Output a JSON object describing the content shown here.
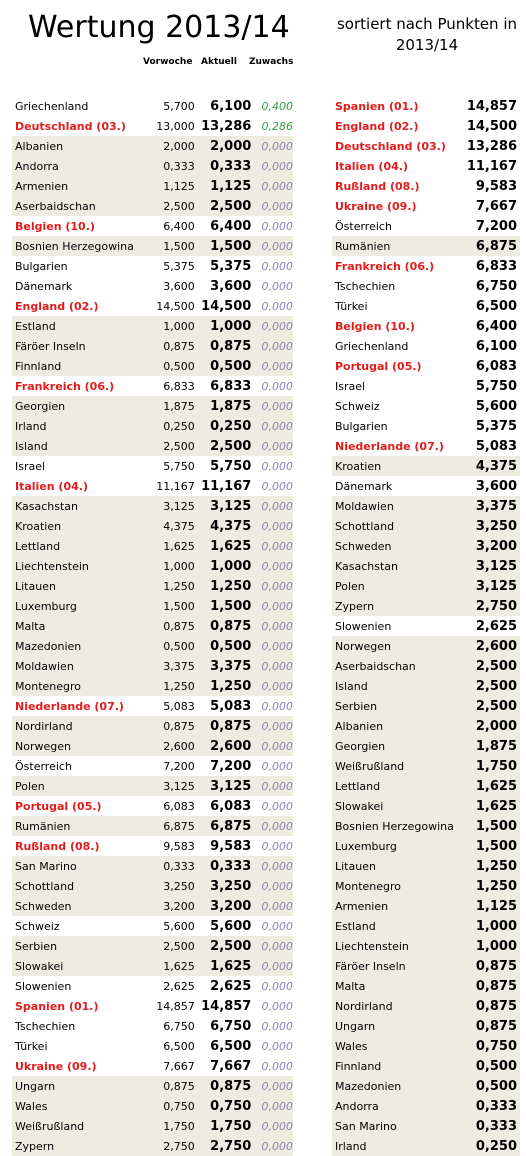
{
  "title": "Wertung 2013/14",
  "subtitle_line1": "sortiert nach Punkten in",
  "subtitle_line2": "2013/14",
  "headers": {
    "vorwoche": "Vorwoche",
    "aktuell": "Aktuell",
    "zuwachs": "Zuwachs"
  },
  "left_rows": [
    {
      "name": "Griechenland",
      "vor": "5,700",
      "akt": "6,100",
      "zuw": "0,400",
      "hl": false,
      "bg": false,
      "pos": true
    },
    {
      "name": "Deutschland (03.)",
      "vor": "13,000",
      "akt": "13,286",
      "zuw": "0,286",
      "hl": true,
      "bg": false,
      "pos": true
    },
    {
      "name": "Albanien",
      "vor": "2,000",
      "akt": "2,000",
      "zuw": "0,000",
      "hl": false,
      "bg": true,
      "pos": false
    },
    {
      "name": "Andorra",
      "vor": "0,333",
      "akt": "0,333",
      "zuw": "0,000",
      "hl": false,
      "bg": true,
      "pos": false
    },
    {
      "name": "Armenien",
      "vor": "1,125",
      "akt": "1,125",
      "zuw": "0,000",
      "hl": false,
      "bg": true,
      "pos": false
    },
    {
      "name": "Aserbaidschan",
      "vor": "2,500",
      "akt": "2,500",
      "zuw": "0,000",
      "hl": false,
      "bg": true,
      "pos": false
    },
    {
      "name": "Belgien (10.)",
      "vor": "6,400",
      "akt": "6,400",
      "zuw": "0,000",
      "hl": true,
      "bg": false,
      "pos": false
    },
    {
      "name": "Bosnien Herzegowina",
      "vor": "1,500",
      "akt": "1,500",
      "zuw": "0,000",
      "hl": false,
      "bg": true,
      "pos": false
    },
    {
      "name": "Bulgarien",
      "vor": "5,375",
      "akt": "5,375",
      "zuw": "0,000",
      "hl": false,
      "bg": false,
      "pos": false
    },
    {
      "name": "Dänemark",
      "vor": "3,600",
      "akt": "3,600",
      "zuw": "0,000",
      "hl": false,
      "bg": false,
      "pos": false
    },
    {
      "name": "England (02.)",
      "vor": "14,500",
      "akt": "14,500",
      "zuw": "0,000",
      "hl": true,
      "bg": false,
      "pos": false
    },
    {
      "name": "Estland",
      "vor": "1,000",
      "akt": "1,000",
      "zuw": "0,000",
      "hl": false,
      "bg": true,
      "pos": false
    },
    {
      "name": "Färöer Inseln",
      "vor": "0,875",
      "akt": "0,875",
      "zuw": "0,000",
      "hl": false,
      "bg": true,
      "pos": false
    },
    {
      "name": "Finnland",
      "vor": "0,500",
      "akt": "0,500",
      "zuw": "0,000",
      "hl": false,
      "bg": true,
      "pos": false
    },
    {
      "name": "Frankreich (06.)",
      "vor": "6,833",
      "akt": "6,833",
      "zuw": "0,000",
      "hl": true,
      "bg": false,
      "pos": false
    },
    {
      "name": "Georgien",
      "vor": "1,875",
      "akt": "1,875",
      "zuw": "0,000",
      "hl": false,
      "bg": true,
      "pos": false
    },
    {
      "name": "Irland",
      "vor": "0,250",
      "akt": "0,250",
      "zuw": "0,000",
      "hl": false,
      "bg": true,
      "pos": false
    },
    {
      "name": "Island",
      "vor": "2,500",
      "akt": "2,500",
      "zuw": "0,000",
      "hl": false,
      "bg": true,
      "pos": false
    },
    {
      "name": "Israel",
      "vor": "5,750",
      "akt": "5,750",
      "zuw": "0,000",
      "hl": false,
      "bg": false,
      "pos": false
    },
    {
      "name": "Italien (04.)",
      "vor": "11,167",
      "akt": "11,167",
      "zuw": "0,000",
      "hl": true,
      "bg": false,
      "pos": false
    },
    {
      "name": "Kasachstan",
      "vor": "3,125",
      "akt": "3,125",
      "zuw": "0,000",
      "hl": false,
      "bg": true,
      "pos": false
    },
    {
      "name": "Kroatien",
      "vor": "4,375",
      "akt": "4,375",
      "zuw": "0,000",
      "hl": false,
      "bg": true,
      "pos": false
    },
    {
      "name": "Lettland",
      "vor": "1,625",
      "akt": "1,625",
      "zuw": "0,000",
      "hl": false,
      "bg": true,
      "pos": false
    },
    {
      "name": "Liechtenstein",
      "vor": "1,000",
      "akt": "1,000",
      "zuw": "0,000",
      "hl": false,
      "bg": true,
      "pos": false
    },
    {
      "name": "Litauen",
      "vor": "1,250",
      "akt": "1,250",
      "zuw": "0,000",
      "hl": false,
      "bg": true,
      "pos": false
    },
    {
      "name": "Luxemburg",
      "vor": "1,500",
      "akt": "1,500",
      "zuw": "0,000",
      "hl": false,
      "bg": true,
      "pos": false
    },
    {
      "name": "Malta",
      "vor": "0,875",
      "akt": "0,875",
      "zuw": "0,000",
      "hl": false,
      "bg": true,
      "pos": false
    },
    {
      "name": "Mazedonien",
      "vor": "0,500",
      "akt": "0,500",
      "zuw": "0,000",
      "hl": false,
      "bg": true,
      "pos": false
    },
    {
      "name": "Moldawien",
      "vor": "3,375",
      "akt": "3,375",
      "zuw": "0,000",
      "hl": false,
      "bg": true,
      "pos": false
    },
    {
      "name": "Montenegro",
      "vor": "1,250",
      "akt": "1,250",
      "zuw": "0,000",
      "hl": false,
      "bg": true,
      "pos": false
    },
    {
      "name": "Niederlande (07.)",
      "vor": "5,083",
      "akt": "5,083",
      "zuw": "0,000",
      "hl": true,
      "bg": false,
      "pos": false
    },
    {
      "name": "Nordirland",
      "vor": "0,875",
      "akt": "0,875",
      "zuw": "0,000",
      "hl": false,
      "bg": true,
      "pos": false
    },
    {
      "name": "Norwegen",
      "vor": "2,600",
      "akt": "2,600",
      "zuw": "0,000",
      "hl": false,
      "bg": true,
      "pos": false
    },
    {
      "name": "Österreich",
      "vor": "7,200",
      "akt": "7,200",
      "zuw": "0,000",
      "hl": false,
      "bg": false,
      "pos": false
    },
    {
      "name": "Polen",
      "vor": "3,125",
      "akt": "3,125",
      "zuw": "0,000",
      "hl": false,
      "bg": true,
      "pos": false
    },
    {
      "name": "Portugal (05.)",
      "vor": "6,083",
      "akt": "6,083",
      "zuw": "0,000",
      "hl": true,
      "bg": false,
      "pos": false
    },
    {
      "name": "Rumänien",
      "vor": "6,875",
      "akt": "6,875",
      "zuw": "0,000",
      "hl": false,
      "bg": true,
      "pos": false
    },
    {
      "name": "Rußland (08.)",
      "vor": "9,583",
      "akt": "9,583",
      "zuw": "0,000",
      "hl": true,
      "bg": false,
      "pos": false
    },
    {
      "name": "San Marino",
      "vor": "0,333",
      "akt": "0,333",
      "zuw": "0,000",
      "hl": false,
      "bg": true,
      "pos": false
    },
    {
      "name": "Schottland",
      "vor": "3,250",
      "akt": "3,250",
      "zuw": "0,000",
      "hl": false,
      "bg": true,
      "pos": false
    },
    {
      "name": "Schweden",
      "vor": "3,200",
      "akt": "3,200",
      "zuw": "0,000",
      "hl": false,
      "bg": true,
      "pos": false
    },
    {
      "name": "Schweiz",
      "vor": "5,600",
      "akt": "5,600",
      "zuw": "0,000",
      "hl": false,
      "bg": false,
      "pos": false
    },
    {
      "name": "Serbien",
      "vor": "2,500",
      "akt": "2,500",
      "zuw": "0,000",
      "hl": false,
      "bg": true,
      "pos": false
    },
    {
      "name": "Slowakei",
      "vor": "1,625",
      "akt": "1,625",
      "zuw": "0,000",
      "hl": false,
      "bg": true,
      "pos": false
    },
    {
      "name": "Slowenien",
      "vor": "2,625",
      "akt": "2,625",
      "zuw": "0,000",
      "hl": false,
      "bg": false,
      "pos": false
    },
    {
      "name": "Spanien (01.)",
      "vor": "14,857",
      "akt": "14,857",
      "zuw": "0,000",
      "hl": true,
      "bg": false,
      "pos": false
    },
    {
      "name": "Tschechien",
      "vor": "6,750",
      "akt": "6,750",
      "zuw": "0,000",
      "hl": false,
      "bg": false,
      "pos": false
    },
    {
      "name": "Türkei",
      "vor": "6,500",
      "akt": "6,500",
      "zuw": "0,000",
      "hl": false,
      "bg": false,
      "pos": false
    },
    {
      "name": "Ukraine (09.)",
      "vor": "7,667",
      "akt": "7,667",
      "zuw": "0,000",
      "hl": true,
      "bg": false,
      "pos": false
    },
    {
      "name": "Ungarn",
      "vor": "0,875",
      "akt": "0,875",
      "zuw": "0,000",
      "hl": false,
      "bg": true,
      "pos": false
    },
    {
      "name": "Wales",
      "vor": "0,750",
      "akt": "0,750",
      "zuw": "0,000",
      "hl": false,
      "bg": true,
      "pos": false
    },
    {
      "name": "Weißrußland",
      "vor": "1,750",
      "akt": "1,750",
      "zuw": "0,000",
      "hl": false,
      "bg": true,
      "pos": false
    },
    {
      "name": "Zypern",
      "vor": "2,750",
      "akt": "2,750",
      "zuw": "0,000",
      "hl": false,
      "bg": true,
      "pos": false
    }
  ],
  "right_rows": [
    {
      "name": "Spanien (01.)",
      "akt": "14,857",
      "hl": true,
      "bg": false
    },
    {
      "name": "England (02.)",
      "akt": "14,500",
      "hl": true,
      "bg": false
    },
    {
      "name": "Deutschland (03.)",
      "akt": "13,286",
      "hl": true,
      "bg": false
    },
    {
      "name": "Italien (04.)",
      "akt": "11,167",
      "hl": true,
      "bg": false
    },
    {
      "name": "Rußland (08.)",
      "akt": "9,583",
      "hl": true,
      "bg": false
    },
    {
      "name": "Ukraine (09.)",
      "akt": "7,667",
      "hl": true,
      "bg": false
    },
    {
      "name": "Österreich",
      "akt": "7,200",
      "hl": false,
      "bg": false
    },
    {
      "name": "Rumänien",
      "akt": "6,875",
      "hl": false,
      "bg": true
    },
    {
      "name": "Frankreich (06.)",
      "akt": "6,833",
      "hl": true,
      "bg": false
    },
    {
      "name": "Tschechien",
      "akt": "6,750",
      "hl": false,
      "bg": false
    },
    {
      "name": "Türkei",
      "akt": "6,500",
      "hl": false,
      "bg": false
    },
    {
      "name": "Belgien (10.)",
      "akt": "6,400",
      "hl": true,
      "bg": false
    },
    {
      "name": "Griechenland",
      "akt": "6,100",
      "hl": false,
      "bg": false
    },
    {
      "name": "Portugal (05.)",
      "akt": "6,083",
      "hl": true,
      "bg": false
    },
    {
      "name": "Israel",
      "akt": "5,750",
      "hl": false,
      "bg": false
    },
    {
      "name": "Schweiz",
      "akt": "5,600",
      "hl": false,
      "bg": false
    },
    {
      "name": "Bulgarien",
      "akt": "5,375",
      "hl": false,
      "bg": false
    },
    {
      "name": "Niederlande (07.)",
      "akt": "5,083",
      "hl": true,
      "bg": false
    },
    {
      "name": "Kroatien",
      "akt": "4,375",
      "hl": false,
      "bg": true
    },
    {
      "name": "Dänemark",
      "akt": "3,600",
      "hl": false,
      "bg": false
    },
    {
      "name": "Moldawien",
      "akt": "3,375",
      "hl": false,
      "bg": true
    },
    {
      "name": "Schottland",
      "akt": "3,250",
      "hl": false,
      "bg": true
    },
    {
      "name": "Schweden",
      "akt": "3,200",
      "hl": false,
      "bg": true
    },
    {
      "name": "Kasachstan",
      "akt": "3,125",
      "hl": false,
      "bg": true
    },
    {
      "name": "Polen",
      "akt": "3,125",
      "hl": false,
      "bg": true
    },
    {
      "name": "Zypern",
      "akt": "2,750",
      "hl": false,
      "bg": true
    },
    {
      "name": "Slowenien",
      "akt": "2,625",
      "hl": false,
      "bg": false
    },
    {
      "name": "Norwegen",
      "akt": "2,600",
      "hl": false,
      "bg": true
    },
    {
      "name": "Aserbaidschan",
      "akt": "2,500",
      "hl": false,
      "bg": true
    },
    {
      "name": "Island",
      "akt": "2,500",
      "hl": false,
      "bg": true
    },
    {
      "name": "Serbien",
      "akt": "2,500",
      "hl": false,
      "bg": true
    },
    {
      "name": "Albanien",
      "akt": "2,000",
      "hl": false,
      "bg": true
    },
    {
      "name": "Georgien",
      "akt": "1,875",
      "hl": false,
      "bg": true
    },
    {
      "name": "Weißrußland",
      "akt": "1,750",
      "hl": false,
      "bg": true
    },
    {
      "name": "Lettland",
      "akt": "1,625",
      "hl": false,
      "bg": true
    },
    {
      "name": "Slowakei",
      "akt": "1,625",
      "hl": false,
      "bg": true
    },
    {
      "name": "Bosnien Herzegowina",
      "akt": "1,500",
      "hl": false,
      "bg": true
    },
    {
      "name": "Luxemburg",
      "akt": "1,500",
      "hl": false,
      "bg": true
    },
    {
      "name": "Litauen",
      "akt": "1,250",
      "hl": false,
      "bg": true
    },
    {
      "name": "Montenegro",
      "akt": "1,250",
      "hl": false,
      "bg": true
    },
    {
      "name": "Armenien",
      "akt": "1,125",
      "hl": false,
      "bg": true
    },
    {
      "name": "Estland",
      "akt": "1,000",
      "hl": false,
      "bg": true
    },
    {
      "name": "Liechtenstein",
      "akt": "1,000",
      "hl": false,
      "bg": true
    },
    {
      "name": "Färöer Inseln",
      "akt": "0,875",
      "hl": false,
      "bg": true
    },
    {
      "name": "Malta",
      "akt": "0,875",
      "hl": false,
      "bg": true
    },
    {
      "name": "Nordirland",
      "akt": "0,875",
      "hl": false,
      "bg": true
    },
    {
      "name": "Ungarn",
      "akt": "0,875",
      "hl": false,
      "bg": true
    },
    {
      "name": "Wales",
      "akt": "0,750",
      "hl": false,
      "bg": true
    },
    {
      "name": "Finnland",
      "akt": "0,500",
      "hl": false,
      "bg": true
    },
    {
      "name": "Mazedonien",
      "akt": "0,500",
      "hl": false,
      "bg": true
    },
    {
      "name": "Andorra",
      "akt": "0,333",
      "hl": false,
      "bg": true
    },
    {
      "name": "San Marino",
      "akt": "0,333",
      "hl": false,
      "bg": true
    },
    {
      "name": "Irland",
      "akt": "0,250",
      "hl": false,
      "bg": true
    }
  ]
}
